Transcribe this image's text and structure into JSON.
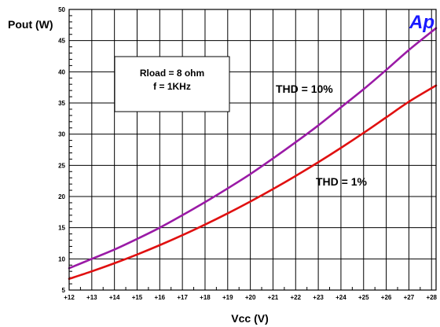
{
  "chart_data": {
    "type": "line",
    "ylabel": "Pout (W)",
    "xlabel": "Vcc (V)",
    "xlim": [
      12,
      28.2
    ],
    "ylim": [
      5,
      50
    ],
    "x_ticks": [
      12,
      13,
      14,
      15,
      16,
      17,
      18,
      19,
      20,
      21,
      22,
      23,
      24,
      25,
      26,
      27,
      28
    ],
    "x_tick_labels": [
      "+12",
      "+13",
      "+14",
      "+15",
      "+16",
      "+17",
      "+18",
      "+19",
      "+20",
      "+21",
      "+22",
      "+23",
      "+24",
      "+25",
      "+26",
      "+27",
      "+28"
    ],
    "y_ticks": [
      5,
      10,
      15,
      20,
      25,
      30,
      35,
      40,
      45,
      50
    ],
    "y_tick_labels": [
      "5",
      "10",
      "15",
      "20",
      "25",
      "30",
      "35",
      "40",
      "45",
      "50"
    ],
    "grid": true,
    "series": [
      {
        "name": "THD = 10%",
        "color": "#9a1aa6",
        "x": [
          12,
          13,
          14,
          15,
          16,
          17,
          18,
          19,
          20,
          21,
          22,
          23,
          24,
          25,
          26,
          27,
          28.2
        ],
        "values": [
          8.5,
          10.0,
          11.5,
          13.2,
          15.0,
          17.0,
          19.1,
          21.3,
          23.6,
          26.1,
          28.7,
          31.4,
          34.3,
          37.2,
          40.3,
          43.5,
          47.0
        ]
      },
      {
        "name": "THD = 1%",
        "color": "#e01010",
        "x": [
          12,
          13,
          14,
          15,
          16,
          17,
          18,
          19,
          20,
          21,
          22,
          23,
          24,
          25,
          26,
          27,
          28.2
        ],
        "values": [
          6.8,
          8.0,
          9.3,
          10.7,
          12.2,
          13.8,
          15.5,
          17.3,
          19.2,
          21.2,
          23.3,
          25.5,
          27.8,
          30.2,
          32.7,
          35.2,
          37.8
        ]
      }
    ],
    "annotations": {
      "thd10_label": "THD = 10%",
      "thd1_label": "THD = 1%",
      "box_line1": "Rload = 8 ohm",
      "box_line2": "f = 1KHz"
    },
    "logo_text": "Ap"
  }
}
